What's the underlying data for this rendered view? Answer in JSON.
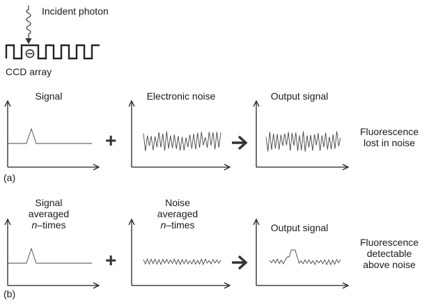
{
  "header": {
    "incident_photon": "Incident photon",
    "ccd_array": "CCD array"
  },
  "row_a": {
    "panel_tag": "(a)",
    "signal_title": "Signal",
    "noise_title": "Electronic noise",
    "output_title": "Output signal",
    "result_line1": "Fluorescence",
    "result_line2": "lost in noise"
  },
  "row_b": {
    "panel_tag": "(b)",
    "signal_line1": "Signal",
    "signal_line2": "averaged",
    "signal_n": "n",
    "signal_times": "–times",
    "noise_line1": "Noise",
    "noise_line2": "averaged",
    "noise_n": "n",
    "noise_times": "–times",
    "output_title": "Output signal",
    "result_line1": "Fluorescence",
    "result_line2": "detectable",
    "result_line3": "above noise"
  },
  "operators": {
    "plus": "+",
    "arrow": "arrow-right-icon"
  },
  "colors": {
    "line": "#333333",
    "axis": "#222222"
  }
}
